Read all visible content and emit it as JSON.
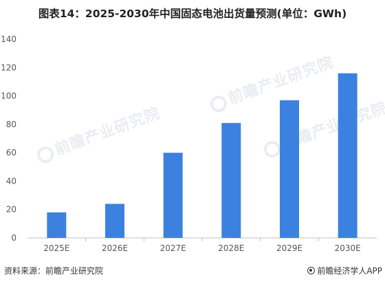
{
  "title": "图表14：2025-2030年中国固态电池出货量预测(单位：GWh)",
  "watermark": "前瞻产业研究院",
  "footer": {
    "source": "资料来源：前瞻产业研究院",
    "brand": "前瞻经济学人APP",
    "brand_icon": "qianzhan-logo-icon"
  },
  "colors": {
    "bar": "#3b82e0",
    "axis": "#bfbfbf",
    "text": "#555555"
  },
  "chart_data": {
    "type": "bar",
    "categories": [
      "2025E",
      "2026E",
      "2027E",
      "2028E",
      "2029E",
      "2030E"
    ],
    "values": [
      18,
      24,
      60,
      81,
      97,
      116
    ],
    "title": "图表14：2025-2030年中国固态电池出货量预测(单位：GWh)",
    "xlabel": "",
    "ylabel": "",
    "ylim": [
      0,
      140
    ],
    "yticks": [
      0,
      20,
      40,
      60,
      80,
      100,
      120,
      140
    ],
    "grid": false,
    "legend": "none"
  }
}
